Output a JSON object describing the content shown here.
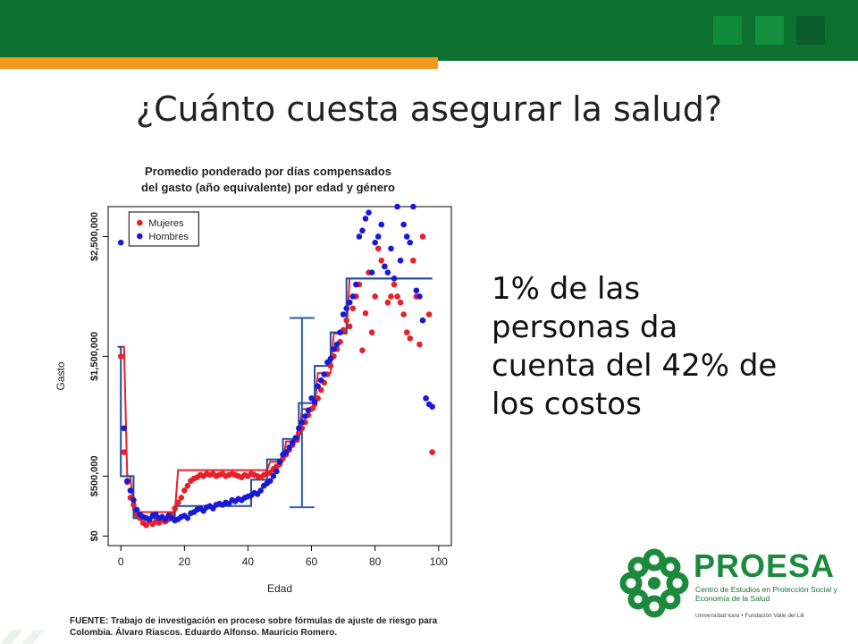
{
  "slide": {
    "title": "¿Cuánto cuesta asegurar la salud?",
    "side_text": "1% de las personas da cuenta del 42% de los costos",
    "source": "FUENTE: Trabajo de investigación en proceso sobre fórmulas de ajuste de riesgo para Colombia. Álvaro Riascos. Eduardo Alfonso. Mauricio Romero."
  },
  "logo": {
    "name": "PROESA",
    "subtitle": "Centro de Estudios en Protección Social y Economía de la Salud",
    "footer": "Universidad Icesi  •  Fundación Valle del Lili"
  },
  "colors": {
    "header_green": "#0d6f30",
    "header_orange": "#f29a1e",
    "mujeres": "#e8202a",
    "hombres": "#1a1ad6",
    "step_mujeres": "#e8202a",
    "step_hombres": "#1f4e9c",
    "error_bar": "#2b5fa3"
  },
  "chart_data": {
    "type": "scatter",
    "title": "Promedio ponderado por días compensados del gasto (año equivalente) por edad y género",
    "xlabel": "Edad",
    "ylabel": "Gasto",
    "xlim": [
      -4,
      104
    ],
    "ylim": [
      -80000,
      2750000
    ],
    "xticks": [
      0,
      20,
      40,
      60,
      80,
      100
    ],
    "xtick_labels": [
      "0",
      "20",
      "40",
      "60",
      "80",
      "100"
    ],
    "yticks": [
      0,
      500000,
      1500000,
      2500000
    ],
    "ytick_labels": [
      "$0",
      "$500,000",
      "$1,500,000",
      "$2,500,000"
    ],
    "legend_position": "top-left",
    "series": [
      {
        "name": "Mujeres",
        "x": [
          0,
          1,
          2,
          3,
          4,
          5,
          6,
          7,
          8,
          9,
          10,
          11,
          12,
          13,
          14,
          15,
          16,
          17,
          18,
          19,
          20,
          21,
          22,
          23,
          24,
          25,
          26,
          27,
          28,
          29,
          30,
          31,
          32,
          33,
          34,
          35,
          36,
          37,
          38,
          39,
          40,
          41,
          42,
          43,
          44,
          45,
          46,
          47,
          48,
          49,
          50,
          51,
          52,
          53,
          54,
          55,
          56,
          57,
          58,
          59,
          60,
          61,
          62,
          63,
          64,
          65,
          66,
          67,
          68,
          69,
          70,
          71,
          72,
          73,
          74,
          75,
          76,
          77,
          78,
          79,
          80,
          81,
          82,
          83,
          84,
          85,
          86,
          87,
          88,
          89,
          90,
          91,
          92,
          93,
          94,
          95,
          96,
          97,
          98
        ],
        "y": [
          1500000,
          700000,
          450000,
          320000,
          260000,
          180000,
          150000,
          110000,
          90000,
          120000,
          100000,
          120000,
          110000,
          130000,
          120000,
          140000,
          180000,
          230000,
          280000,
          320000,
          380000,
          420000,
          460000,
          480000,
          490000,
          510000,
          500000,
          520000,
          510000,
          520000,
          500000,
          510000,
          520000,
          500000,
          510000,
          520000,
          510000,
          500000,
          490000,
          510000,
          500000,
          520000,
          510000,
          500000,
          490000,
          510000,
          520000,
          530000,
          560000,
          580000,
          600000,
          650000,
          680000,
          720000,
          760000,
          800000,
          860000,
          900000,
          950000,
          1010000,
          1060000,
          1100000,
          1150000,
          1220000,
          1280000,
          1350000,
          1420000,
          1500000,
          1560000,
          1620000,
          1720000,
          1800000,
          1750000,
          1900000,
          2000000,
          2100000,
          1550000,
          1860000,
          2200000,
          1700000,
          2000000,
          2400000,
          2300000,
          2250000,
          1950000,
          2000000,
          2100000,
          2000000,
          1950000,
          1850000,
          1700000,
          1650000,
          2300000,
          2000000,
          1600000,
          2500000,
          1150000,
          1850000,
          700000
        ]
      },
      {
        "name": "Hombres",
        "x": [
          0,
          1,
          2,
          3,
          4,
          5,
          6,
          7,
          8,
          9,
          10,
          11,
          12,
          13,
          14,
          15,
          16,
          17,
          18,
          19,
          20,
          21,
          22,
          23,
          24,
          25,
          26,
          27,
          28,
          29,
          30,
          31,
          32,
          33,
          34,
          35,
          36,
          37,
          38,
          39,
          40,
          41,
          42,
          43,
          44,
          45,
          46,
          47,
          48,
          49,
          50,
          51,
          52,
          53,
          54,
          55,
          56,
          57,
          58,
          59,
          60,
          61,
          62,
          63,
          64,
          65,
          66,
          67,
          68,
          69,
          70,
          71,
          72,
          73,
          74,
          75,
          76,
          77,
          78,
          79,
          80,
          81,
          82,
          83,
          84,
          85,
          86,
          87,
          88,
          89,
          90,
          91,
          92,
          93,
          94,
          95,
          96,
          97,
          98
        ],
        "y": [
          2450000,
          900000,
          460000,
          380000,
          300000,
          220000,
          180000,
          160000,
          150000,
          140000,
          170000,
          180000,
          150000,
          160000,
          140000,
          170000,
          150000,
          130000,
          140000,
          160000,
          170000,
          150000,
          190000,
          200000,
          220000,
          230000,
          210000,
          240000,
          250000,
          230000,
          260000,
          270000,
          260000,
          280000,
          270000,
          300000,
          290000,
          310000,
          300000,
          320000,
          330000,
          340000,
          360000,
          350000,
          380000,
          420000,
          440000,
          460000,
          500000,
          540000,
          620000,
          680000,
          700000,
          740000,
          780000,
          820000,
          900000,
          950000,
          1000000,
          1050000,
          1150000,
          1120000,
          1250000,
          1300000,
          1350000,
          1450000,
          1480000,
          1560000,
          1600000,
          1700000,
          1850000,
          1900000,
          1950000,
          2000000,
          2100000,
          2500000,
          2550000,
          2650000,
          2700000,
          2200000,
          2450000,
          2500000,
          2600000,
          2250000,
          2200000,
          2400000,
          2150000,
          2750000,
          2300000,
          2600000,
          2500000,
          2450000,
          2750000,
          2050000,
          2000000,
          1800000,
          1150000,
          1100000,
          1080000
        ]
      },
      {
        "name": "Escalón mujeres",
        "x": [
          0,
          1,
          2,
          3,
          4,
          17,
          18,
          46,
          47,
          51,
          52,
          56,
          57,
          61,
          62,
          66,
          67,
          71,
          72,
          98
        ],
        "y": [
          1580000,
          1580000,
          500000,
          500000,
          200000,
          200000,
          550000,
          550000,
          620000,
          620000,
          790000,
          790000,
          1060000,
          1060000,
          1360000,
          1360000,
          1690000,
          1690000,
          2150000,
          2150000
        ]
      },
      {
        "name": "Escalón hombres",
        "x": [
          -1,
          0,
          0,
          1,
          1,
          4,
          4,
          17,
          17,
          41,
          41,
          46,
          46,
          51,
          51,
          56,
          56,
          61,
          61,
          66,
          66,
          71,
          71,
          98
        ],
        "y": [
          1580000,
          1580000,
          500000,
          500000,
          500000,
          500000,
          150000,
          150000,
          250000,
          250000,
          470000,
          470000,
          640000,
          640000,
          810000,
          810000,
          1110000,
          1110000,
          1420000,
          1420000,
          1700000,
          1700000,
          2150000,
          2150000
        ]
      }
    ],
    "error_bar": {
      "x": 57,
      "y_low": 240000,
      "y_high": 1820000
    }
  }
}
